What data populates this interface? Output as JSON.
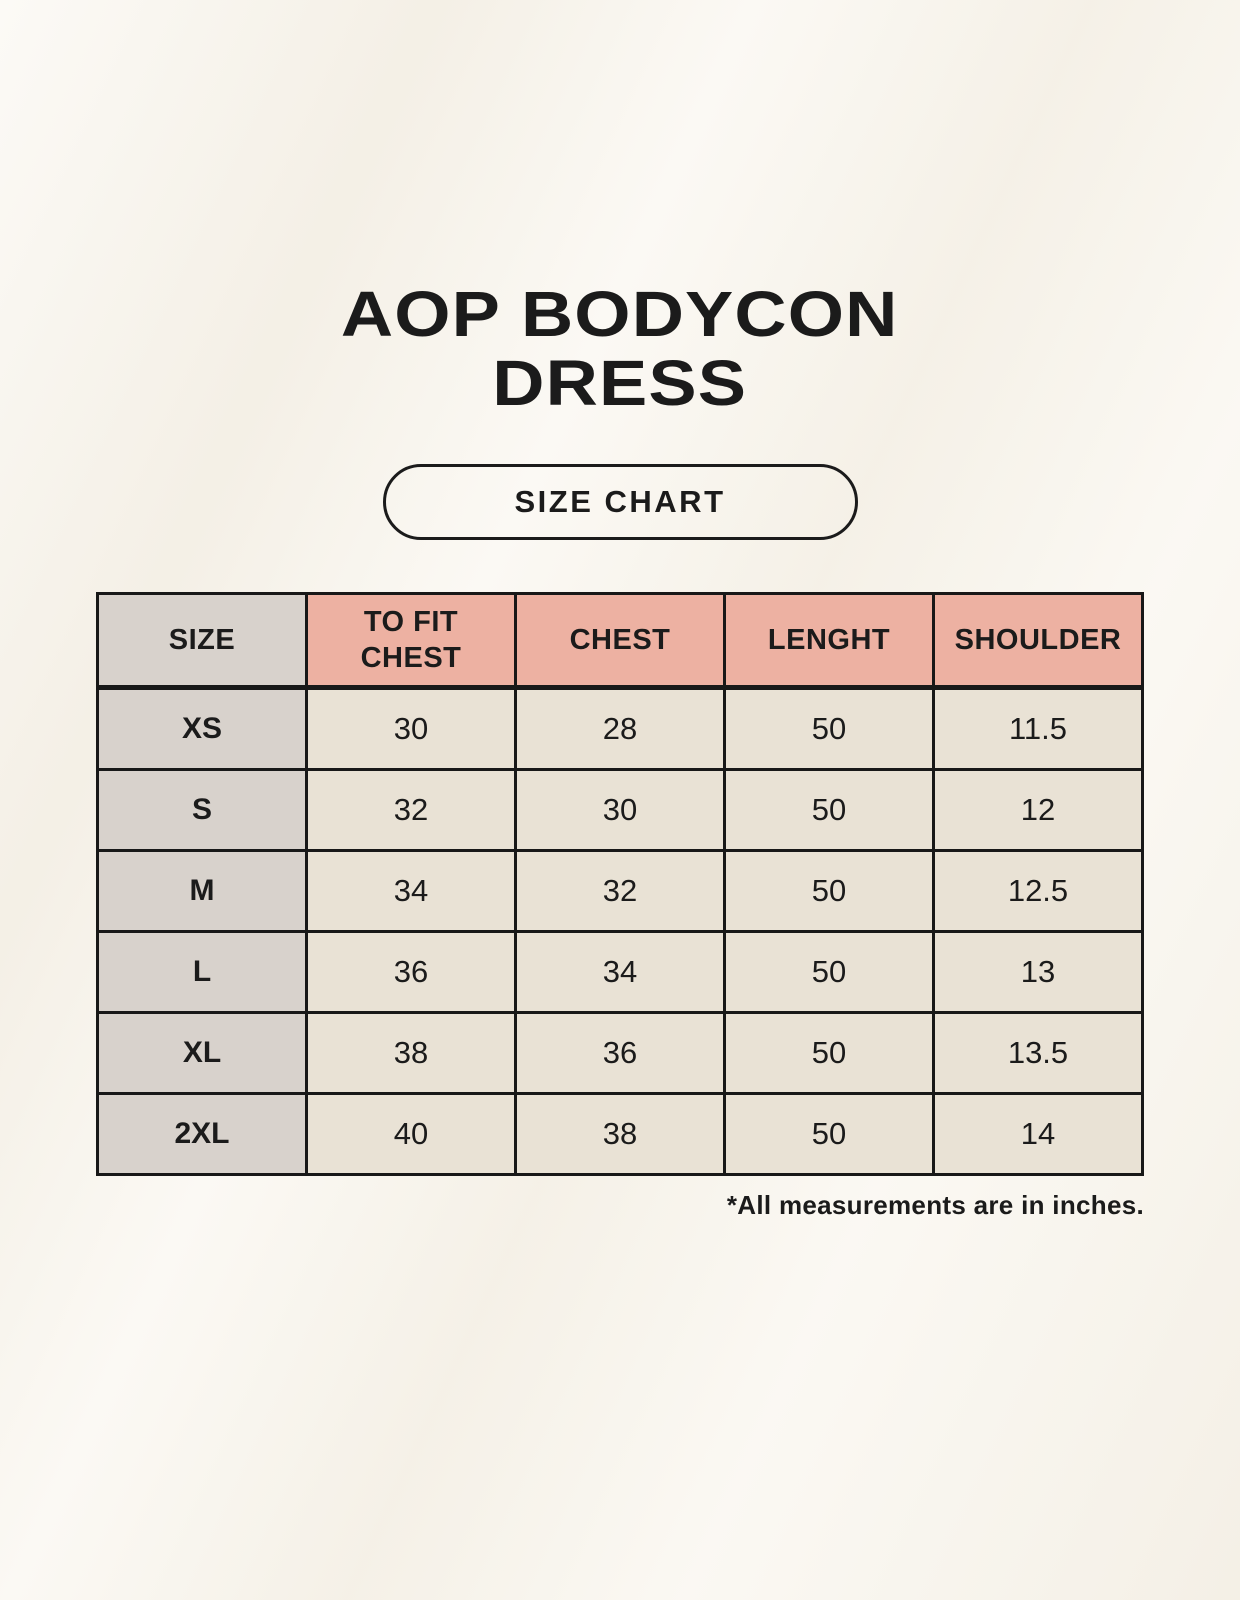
{
  "page": {
    "title_line1": "AOP BODYCON",
    "title_line2": "DRESS",
    "badge_label": "SIZE CHART",
    "footnote": "*All measurements are in inches."
  },
  "table": {
    "columns": [
      "SIZE",
      "TO FIT\nCHEST",
      "CHEST",
      "LENGHT",
      "SHOULDER"
    ],
    "rows": [
      {
        "size": "XS",
        "values": [
          "30",
          "28",
          "50",
          "11.5"
        ]
      },
      {
        "size": "S",
        "values": [
          "32",
          "30",
          "50",
          "12"
        ]
      },
      {
        "size": "M",
        "values": [
          "34",
          "32",
          "50",
          "12.5"
        ]
      },
      {
        "size": "L",
        "values": [
          "36",
          "34",
          "50",
          "13"
        ]
      },
      {
        "size": "XL",
        "values": [
          "38",
          "36",
          "50",
          "13.5"
        ]
      },
      {
        "size": "2XL",
        "values": [
          "40",
          "38",
          "50",
          "14"
        ]
      }
    ],
    "units_note": "inches"
  },
  "colors": {
    "background": "#f8f4eb",
    "header_accent": "#edb1a2",
    "size_column": "#d8d2cc",
    "cell": "#e9e2d5",
    "border": "#181818",
    "text": "#1b1b1b"
  }
}
